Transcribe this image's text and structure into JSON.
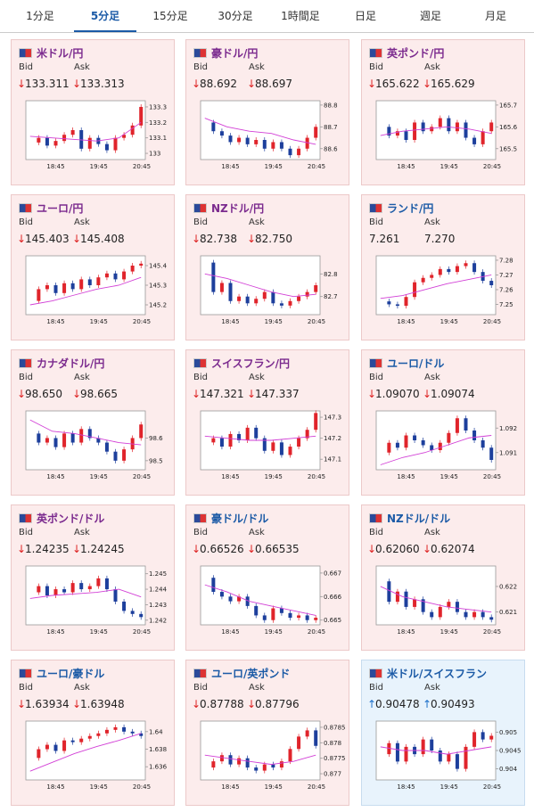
{
  "tabs": [
    "1分足",
    "5分足",
    "15分足",
    "30分足",
    "1時間足",
    "日足",
    "週足",
    "月足"
  ],
  "selected_tab": 1,
  "labels": {
    "bid": "Bid",
    "ask": "Ask"
  },
  "times": [
    "18:45",
    "19:45",
    "20:45"
  ],
  "cards": [
    {
      "title": "米ドル/円",
      "visited": true,
      "arrow": "↓",
      "bid": "133.311",
      "ask": "133.313",
      "chart": {
        "ylim": [
          132.96,
          133.34
        ],
        "yticks": [
          133.3,
          133.2,
          133.1,
          133
        ],
        "close": [
          133.07,
          133.1,
          133.05,
          133.08,
          133.12,
          133.15,
          133.03,
          133.1,
          133.06,
          133.02,
          133.1,
          133.12,
          133.18,
          133.3
        ],
        "ma": [
          133.11,
          133.1,
          133.09,
          133.08,
          133.1,
          133.2
        ]
      }
    },
    {
      "title": "豪ドル/円",
      "visited": true,
      "arrow": "↓",
      "bid": "88.692",
      "ask": "88.697",
      "chart": {
        "ylim": [
          88.55,
          88.82
        ],
        "yticks": [
          88.8,
          88.7,
          88.6
        ],
        "close": [
          88.72,
          88.68,
          88.66,
          88.63,
          88.65,
          88.62,
          88.64,
          88.6,
          88.63,
          88.6,
          88.57,
          88.6,
          88.65,
          88.7
        ],
        "ma": [
          88.74,
          88.7,
          88.68,
          88.67,
          88.64,
          88.62
        ]
      }
    },
    {
      "title": "英ポンド/円",
      "visited": true,
      "arrow": "↓",
      "bid": "165.622",
      "ask": "165.629",
      "chart": {
        "ylim": [
          165.45,
          165.72
        ],
        "yticks": [
          165.7,
          165.6,
          165.5
        ],
        "close": [
          165.6,
          165.56,
          165.58,
          165.54,
          165.62,
          165.58,
          165.6,
          165.64,
          165.58,
          165.62,
          165.55,
          165.52,
          165.58,
          165.62
        ],
        "ma": [
          165.56,
          165.58,
          165.59,
          165.6,
          165.59,
          165.57
        ]
      }
    },
    {
      "title": "ユーロ/円",
      "visited": true,
      "arrow": "↓",
      "bid": "145.403",
      "ask": "145.408",
      "chart": {
        "ylim": [
          145.15,
          145.45
        ],
        "yticks": [
          145.4,
          145.3,
          145.2
        ],
        "close": [
          145.22,
          145.28,
          145.3,
          145.26,
          145.31,
          145.28,
          145.33,
          145.3,
          145.34,
          145.36,
          145.33,
          145.37,
          145.4,
          145.41
        ],
        "ma": [
          145.2,
          145.22,
          145.25,
          145.28,
          145.3,
          145.34
        ]
      }
    },
    {
      "title": "NZドル/円",
      "visited": true,
      "arrow": "↓",
      "bid": "82.738",
      "ask": "82.750",
      "chart": {
        "ylim": [
          82.62,
          82.88
        ],
        "yticks": [
          82.8,
          82.7
        ],
        "close": [
          82.85,
          82.72,
          82.76,
          82.68,
          82.7,
          82.67,
          82.69,
          82.72,
          82.67,
          82.66,
          82.68,
          82.7,
          82.72,
          82.75
        ],
        "ma": [
          82.8,
          82.78,
          82.75,
          82.72,
          82.7,
          82.71
        ]
      }
    },
    {
      "title": "ランド/円",
      "visited": false,
      "arrow": "",
      "bid": "7.261",
      "ask": "7.270",
      "chart": {
        "ylim": [
          7.243,
          7.283
        ],
        "yticks": [
          7.28,
          7.27,
          7.26,
          7.25
        ],
        "close": [
          7.252,
          7.25,
          7.249,
          7.255,
          7.265,
          7.268,
          7.27,
          7.274,
          7.272,
          7.276,
          7.278,
          7.272,
          7.266,
          7.263
        ],
        "ma": [
          7.254,
          7.256,
          7.26,
          7.264,
          7.267,
          7.27
        ]
      }
    },
    {
      "title": "カナダドル/円",
      "visited": true,
      "arrow": "↓",
      "bid": "98.650",
      "ask": "98.665",
      "chart": {
        "ylim": [
          98.46,
          98.72
        ],
        "yticks": [
          98.6,
          98.5
        ],
        "close": [
          98.62,
          98.58,
          98.6,
          98.56,
          98.62,
          98.58,
          98.64,
          98.6,
          98.58,
          98.54,
          98.5,
          98.55,
          98.6,
          98.66
        ],
        "ma": [
          98.68,
          98.63,
          98.62,
          98.6,
          98.58,
          98.57
        ]
      }
    },
    {
      "title": "スイスフラン/円",
      "visited": true,
      "arrow": "↓",
      "bid": "147.321",
      "ask": "147.337",
      "chart": {
        "ylim": [
          147.05,
          147.33
        ],
        "yticks": [
          147.3,
          147.2,
          147.1
        ],
        "close": [
          147.18,
          147.2,
          147.16,
          147.22,
          147.19,
          147.25,
          147.2,
          147.14,
          147.18,
          147.12,
          147.16,
          147.2,
          147.24,
          147.32
        ],
        "ma": [
          147.21,
          147.2,
          147.19,
          147.19,
          147.2,
          147.21
        ]
      }
    },
    {
      "title": "ユーロ/ドル",
      "visited": false,
      "arrow": "↓",
      "bid": "1.09070",
      "ask": "1.09074",
      "chart": {
        "ylim": [
          1.0903,
          1.0927
        ],
        "yticks": [
          1.092,
          1.091
        ],
        "close": [
          1.091,
          1.0914,
          1.0912,
          1.0917,
          1.0915,
          1.0913,
          1.0911,
          1.0914,
          1.0918,
          1.0924,
          1.0919,
          1.0915,
          1.0912,
          1.0907
        ],
        "ma": [
          1.0905,
          1.0908,
          1.091,
          1.0913,
          1.0916,
          1.0917
        ]
      }
    },
    {
      "title": "英ポンド/ドル",
      "visited": true,
      "arrow": "↓",
      "bid": "1.24235",
      "ask": "1.24245",
      "chart": {
        "ylim": [
          1.2417,
          1.2455
        ],
        "yticks": [
          1.245,
          1.244,
          1.243,
          1.242
        ],
        "close": [
          1.2438,
          1.2442,
          1.2436,
          1.244,
          1.2438,
          1.2444,
          1.244,
          1.2442,
          1.2447,
          1.244,
          1.2432,
          1.2426,
          1.2424,
          1.2422
        ],
        "ma": [
          1.2434,
          1.2436,
          1.2437,
          1.2438,
          1.244,
          1.2435
        ]
      }
    },
    {
      "title": "豪ドル/ドル",
      "visited": false,
      "arrow": "↓",
      "bid": "0.66526",
      "ask": "0.66535",
      "chart": {
        "ylim": [
          0.6648,
          0.6673
        ],
        "yticks": [
          0.667,
          0.666,
          0.665
        ],
        "close": [
          0.6668,
          0.6662,
          0.666,
          0.6658,
          0.666,
          0.6656,
          0.6652,
          0.665,
          0.6655,
          0.6653,
          0.6651,
          0.6652,
          0.665,
          0.6651
        ],
        "ma": [
          0.6665,
          0.6662,
          0.6658,
          0.6656,
          0.6654,
          0.6652
        ]
      }
    },
    {
      "title": "NZドル/ドル",
      "visited": false,
      "arrow": "↓",
      "bid": "0.62060",
      "ask": "0.62074",
      "chart": {
        "ylim": [
          0.6205,
          0.6228
        ],
        "yticks": [
          0.622,
          0.621
        ],
        "close": [
          0.6222,
          0.6214,
          0.6218,
          0.6212,
          0.6215,
          0.621,
          0.6208,
          0.6212,
          0.6214,
          0.621,
          0.6208,
          0.621,
          0.6208,
          0.6207
        ],
        "ma": [
          0.622,
          0.6216,
          0.6214,
          0.6212,
          0.6211,
          0.621
        ]
      }
    },
    {
      "title": "ユーロ/豪ドル",
      "visited": false,
      "arrow": "↓",
      "bid": "1.63934",
      "ask": "1.63948",
      "chart": {
        "ylim": [
          1.6345,
          1.6412
        ],
        "yticks": [
          1.64,
          1.638,
          1.636
        ],
        "close": [
          1.637,
          1.638,
          1.6385,
          1.6378,
          1.639,
          1.6388,
          1.6392,
          1.6395,
          1.6398,
          1.6402,
          1.6405,
          1.64,
          1.6398,
          1.6395
        ],
        "ma": [
          1.6355,
          1.6365,
          1.6375,
          1.6383,
          1.639,
          1.6398
        ]
      }
    },
    {
      "title": "ユーロ/英ポンド",
      "visited": false,
      "arrow": "↓",
      "bid": "0.87788",
      "ask": "0.87796",
      "chart": {
        "ylim": [
          0.8768,
          0.8787
        ],
        "yticks": [
          0.8785,
          0.878,
          0.8775,
          0.877
        ],
        "close": [
          0.8772,
          0.8774,
          0.8776,
          0.8773,
          0.8775,
          0.8772,
          0.8771,
          0.8773,
          0.8772,
          0.8774,
          0.8778,
          0.8782,
          0.8784,
          0.8779
        ],
        "ma": [
          0.8776,
          0.8775,
          0.8774,
          0.8773,
          0.8774,
          0.8776
        ]
      }
    },
    {
      "title": "米ドル/スイスフラン",
      "visited": false,
      "arrow": "↑",
      "bid": "0.90478",
      "ask": "0.90493",
      "chart": {
        "ylim": [
          0.9037,
          0.9053
        ],
        "yticks": [
          0.905,
          0.9045,
          0.904
        ],
        "close": [
          0.9044,
          0.9047,
          0.9042,
          0.9046,
          0.9044,
          0.9048,
          0.9045,
          0.9042,
          0.9044,
          0.904,
          0.9046,
          0.905,
          0.9048,
          0.9049
        ],
        "ma": [
          0.9046,
          0.9045,
          0.9045,
          0.9044,
          0.9045,
          0.9046
        ]
      }
    }
  ]
}
